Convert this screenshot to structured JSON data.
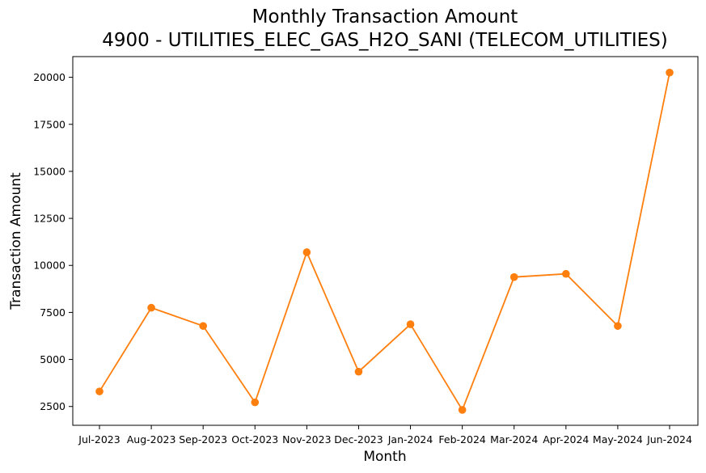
{
  "chart_data": {
    "type": "line",
    "title": "Monthly Transaction Amount",
    "subtitle": "4900 - UTILITIES_ELEC_GAS_H2O_SANI (TELECOM_UTILITIES)",
    "xlabel": "Month",
    "ylabel": "Transaction Amount",
    "categories": [
      "Jul-2023",
      "Aug-2023",
      "Sep-2023",
      "Oct-2023",
      "Nov-2023",
      "Dec-2023",
      "Jan-2024",
      "Feb-2024",
      "Mar-2024",
      "Apr-2024",
      "May-2024",
      "Jun-2024"
    ],
    "series": [
      {
        "values": [
          3300,
          7750,
          6780,
          2720,
          10700,
          4350,
          6870,
          2320,
          9380,
          9550,
          6780,
          20250
        ],
        "color": "#ff7f0e",
        "marker": "circle"
      }
    ],
    "ylim": [
      1500,
      21100
    ],
    "yticks": [
      2500,
      5000,
      7500,
      10000,
      12500,
      15000,
      17500,
      20000
    ],
    "grid": false,
    "legend": "none"
  }
}
